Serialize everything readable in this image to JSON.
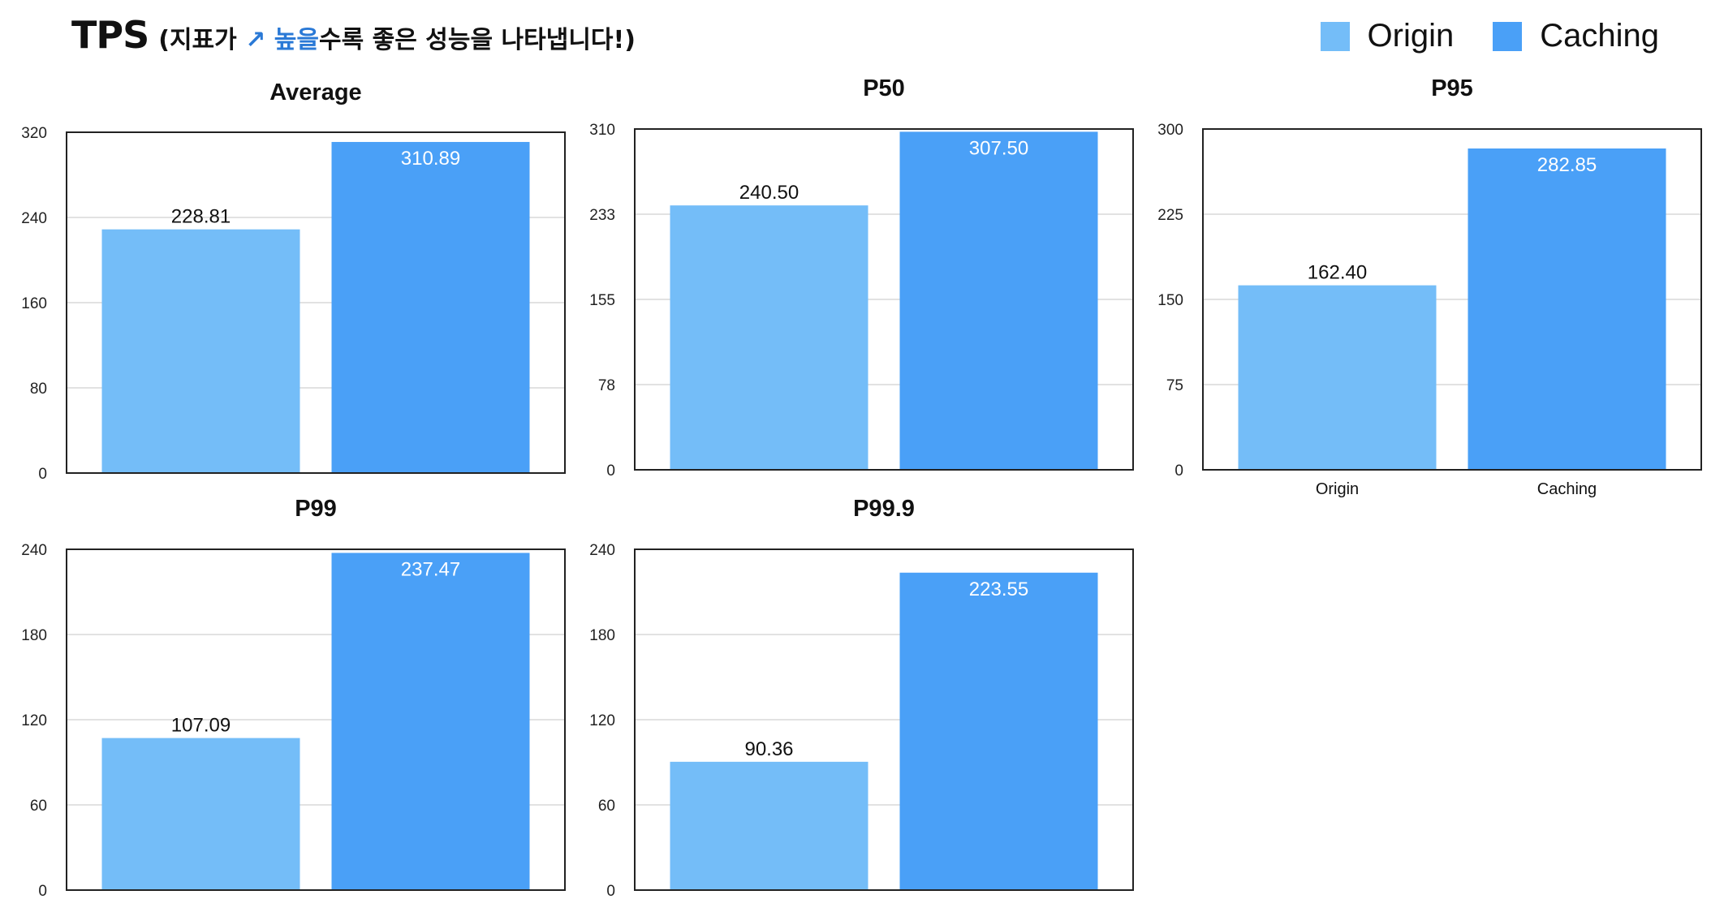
{
  "header": {
    "title": "TPS",
    "subtitle_prefix": "(지표가 ",
    "subtitle_highlight": "↗ 높을",
    "subtitle_suffix": "수록 좋은 성능을 나타냅니다!)"
  },
  "legend": [
    {
      "label": "Origin",
      "color": "#74bdf8"
    },
    {
      "label": "Caching",
      "color": "#4aa0f7"
    }
  ],
  "chart_data": [
    {
      "type": "bar",
      "title": "Average",
      "categories": [
        "Origin",
        "Caching"
      ],
      "values": [
        228.81,
        310.89
      ],
      "value_labels": [
        "228.81",
        "310.89"
      ],
      "yticks": [
        "0",
        "80",
        "160",
        "240",
        "320"
      ],
      "ylim": [
        0,
        320
      ],
      "show_xticks": false
    },
    {
      "type": "bar",
      "title": "P50",
      "categories": [
        "Origin",
        "Caching"
      ],
      "values": [
        240.5,
        307.5
      ],
      "value_labels": [
        "240.50",
        "307.50"
      ],
      "yticks": [
        "0",
        "78",
        "155",
        "233",
        "310"
      ],
      "ylim": [
        0,
        310
      ],
      "show_xticks": false
    },
    {
      "type": "bar",
      "title": "P95",
      "categories": [
        "Origin",
        "Caching"
      ],
      "values": [
        162.4,
        282.85
      ],
      "value_labels": [
        "162.40",
        "282.85"
      ],
      "yticks": [
        "0",
        "75",
        "150",
        "225",
        "300"
      ],
      "ylim": [
        0,
        300
      ],
      "show_xticks": true
    },
    {
      "type": "bar",
      "title": "P99",
      "categories": [
        "Origin",
        "Caching"
      ],
      "values": [
        107.09,
        237.47
      ],
      "value_labels": [
        "107.09",
        "237.47"
      ],
      "yticks": [
        "0",
        "60",
        "120",
        "180",
        "240"
      ],
      "ylim": [
        0,
        240
      ],
      "show_xticks": false
    },
    {
      "type": "bar",
      "title": "P99.9",
      "categories": [
        "Origin",
        "Caching"
      ],
      "values": [
        90.36,
        223.55
      ],
      "value_labels": [
        "90.36",
        "223.55"
      ],
      "yticks": [
        "0",
        "60",
        "120",
        "180",
        "240"
      ],
      "ylim": [
        0,
        240
      ],
      "show_xticks": false
    }
  ]
}
